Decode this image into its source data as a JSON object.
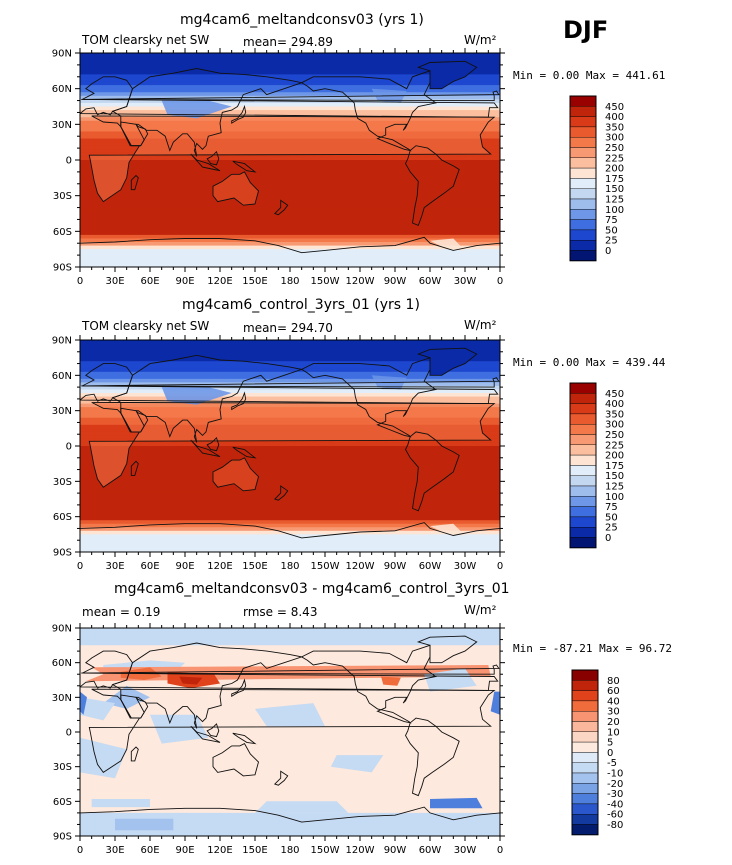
{
  "season": "DJF",
  "panels": [
    {
      "title": "mg4cam6_meltandconsv03 (yrs 1)",
      "left_label": "TOM clearsky net SW",
      "stat1": "mean= 294.89",
      "stat2": "",
      "units": "W/m²",
      "minmax": "Min =    0.00 Max = 441.61",
      "colorbar": [
        "450",
        "400",
        "350",
        "300",
        "250",
        "225",
        "200",
        "175",
        "150",
        "125",
        "100",
        "75",
        "50",
        "25",
        "0"
      ]
    },
    {
      "title": "mg4cam6_control_3yrs_01 (yrs 1)",
      "left_label": "TOM clearsky net SW",
      "stat1": "mean= 294.70",
      "stat2": "",
      "units": "W/m²",
      "minmax": "Min =    0.00 Max = 439.44",
      "colorbar": [
        "450",
        "400",
        "350",
        "300",
        "250",
        "225",
        "200",
        "175",
        "150",
        "125",
        "100",
        "75",
        "50",
        "25",
        "0"
      ]
    },
    {
      "title": "mg4cam6_meltandconsv03 - mg4cam6_control_3yrs_01",
      "left_label": "mean =    0.19",
      "stat1": "rmse =    8.43",
      "stat2": "",
      "units": "W/m²",
      "minmax": "Min = -87.21 Max =  96.72",
      "colorbar": [
        "80",
        "60",
        "40",
        "30",
        "20",
        "10",
        "5",
        "0",
        "-5",
        "-10",
        "-20",
        "-30",
        "-40",
        "-60",
        "-80"
      ]
    }
  ],
  "lat_ticks": [
    "90N",
    "60N",
    "30N",
    "0",
    "30S",
    "60S",
    "90S"
  ],
  "lon_ticks": [
    "0",
    "30E",
    "60E",
    "90E",
    "120E",
    "150E",
    "180",
    "150W",
    "120W",
    "90W",
    "60W",
    "30W",
    "0"
  ],
  "colors": {
    "abs_scale": [
      "#990000",
      "#c0250b",
      "#d93a17",
      "#e95a2e",
      "#f4794a",
      "#f79a73",
      "#fbbf9f",
      "#fde4d3",
      "#e1edf8",
      "#c3d8f0",
      "#9fbdec",
      "#6e97e7",
      "#3f6ee0",
      "#1d47cf",
      "#0b2aa8",
      "#021572"
    ],
    "diff_scale": [
      "#880000",
      "#c0250b",
      "#e0431c",
      "#f06c3d",
      "#f89472",
      "#fbb79b",
      "#fcd6c4",
      "#fde9dd",
      "#dfeaf8",
      "#c5daf3",
      "#a4c2ee",
      "#7aa3e6",
      "#4f7fdc",
      "#2a57cc",
      "#123a9f",
      "#041c6e"
    ]
  },
  "chart_data": [
    {
      "type": "heatmap",
      "title": "mg4cam6_meltandconsv03 (yrs 1)",
      "field": "TOM clearsky net SW",
      "units": "W/m2",
      "mean": 294.89,
      "min": 0.0,
      "max": 441.61,
      "x": [
        "0",
        "30E",
        "60E",
        "90E",
        "120E",
        "150E",
        "180",
        "150W",
        "120W",
        "90W",
        "60W",
        "30W",
        "0"
      ],
      "y": [
        "90N",
        "60N",
        "30N",
        "0",
        "30S",
        "60S",
        "90S"
      ],
      "levels": [
        0,
        25,
        50,
        75,
        100,
        125,
        150,
        175,
        200,
        225,
        250,
        300,
        350,
        400,
        450
      ],
      "lat_profile": {
        "lat": [
          90,
          75,
          60,
          45,
          30,
          15,
          0,
          -15,
          -30,
          -45,
          -60,
          -75,
          -90
        ],
        "value": [
          0,
          10,
          60,
          170,
          270,
          360,
          400,
          420,
          430,
          435,
          430,
          160,
          150
        ]
      }
    },
    {
      "type": "heatmap",
      "title": "mg4cam6_control_3yrs_01 (yrs 1)",
      "field": "TOM clearsky net SW",
      "units": "W/m2",
      "mean": 294.7,
      "min": 0.0,
      "max": 439.44,
      "x": [
        "0",
        "30E",
        "60E",
        "90E",
        "120E",
        "150E",
        "180",
        "150W",
        "120W",
        "90W",
        "60W",
        "30W",
        "0"
      ],
      "y": [
        "90N",
        "60N",
        "30N",
        "0",
        "30S",
        "60S",
        "90S"
      ],
      "levels": [
        0,
        25,
        50,
        75,
        100,
        125,
        150,
        175,
        200,
        225,
        250,
        300,
        350,
        400,
        450
      ],
      "lat_profile": {
        "lat": [
          90,
          75,
          60,
          45,
          30,
          15,
          0,
          -15,
          -30,
          -45,
          -60,
          -75,
          -90
        ],
        "value": [
          0,
          10,
          60,
          170,
          270,
          360,
          400,
          420,
          430,
          435,
          430,
          160,
          150
        ]
      }
    },
    {
      "type": "heatmap",
      "title": "mg4cam6_meltandconsv03 - mg4cam6_control_3yrs_01",
      "units": "W/m2",
      "mean": 0.19,
      "rmse": 8.43,
      "min": -87.21,
      "max": 96.72,
      "x": [
        "0",
        "30E",
        "60E",
        "90E",
        "120E",
        "150E",
        "180",
        "150W",
        "120W",
        "90W",
        "60W",
        "30W",
        "0"
      ],
      "y": [
        "90N",
        "60N",
        "30N",
        "0",
        "30S",
        "60S",
        "90S"
      ],
      "levels": [
        -80,
        -60,
        -40,
        -30,
        -20,
        -10,
        -5,
        0,
        5,
        10,
        20,
        30,
        40,
        60,
        80
      ]
    }
  ]
}
